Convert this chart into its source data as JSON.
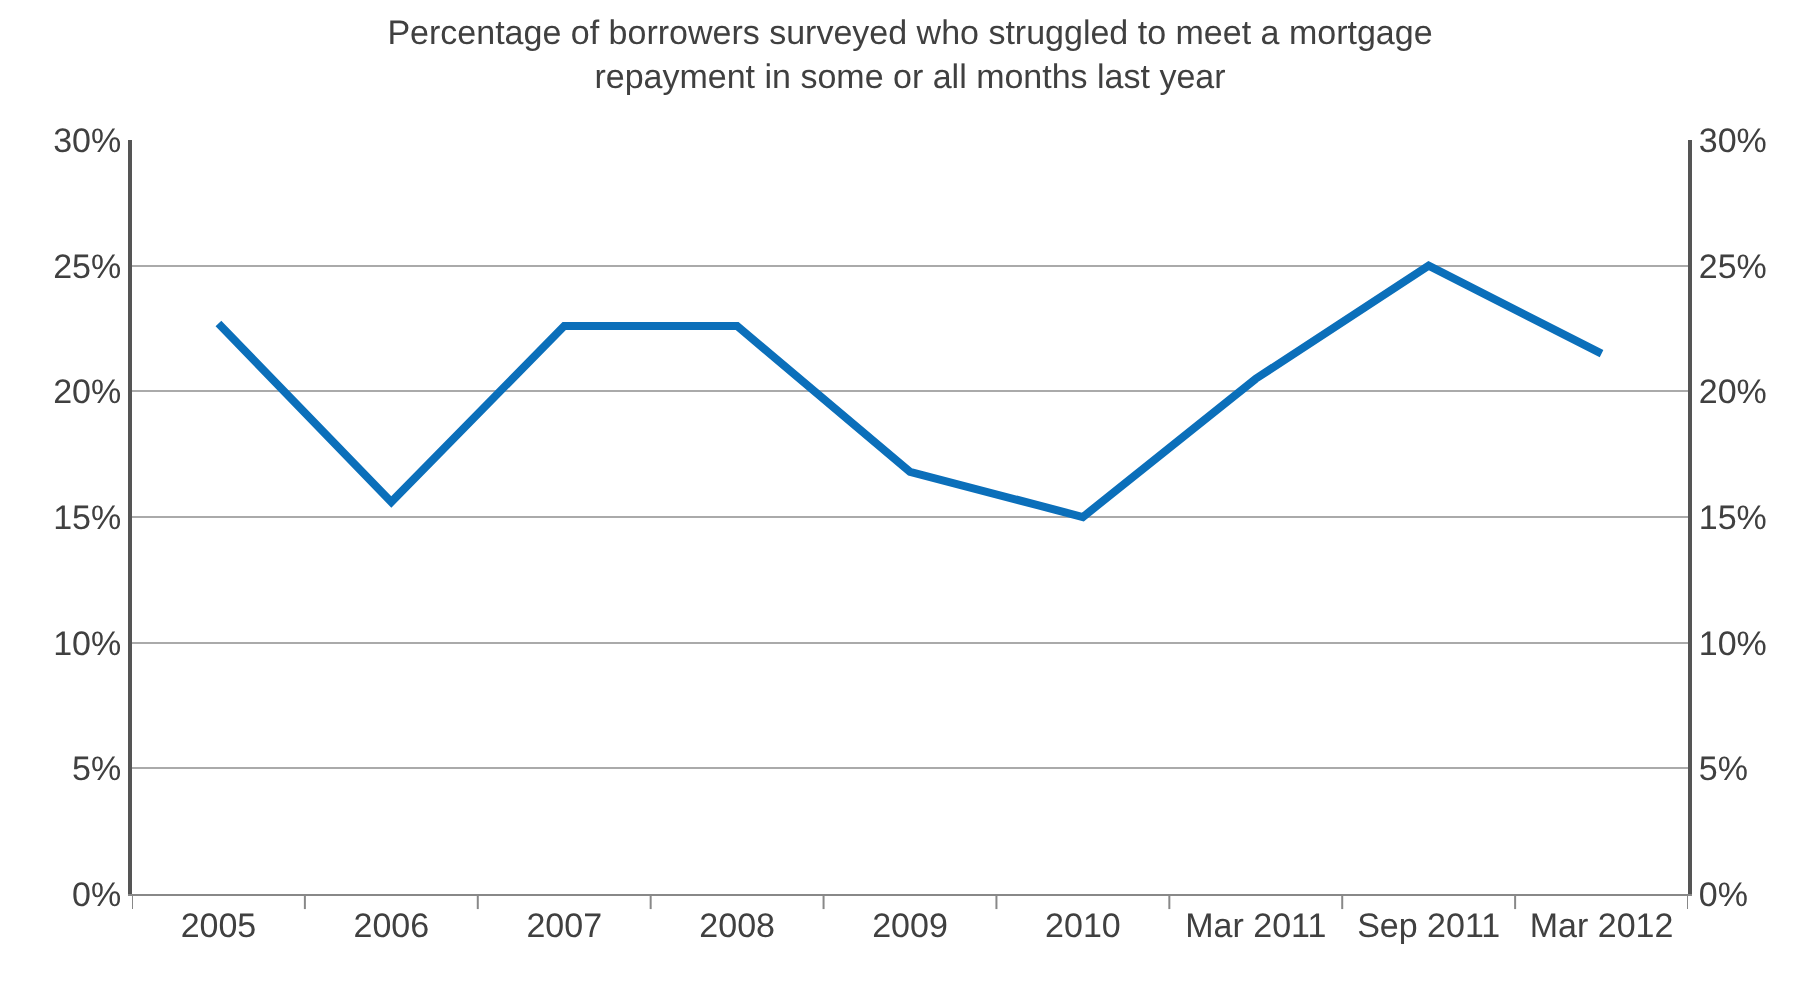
{
  "chart_data": {
    "type": "line",
    "title": "Percentage of borrowers surveyed who struggled to meet a mortgage\nrepayment in some or all months last year",
    "categories": [
      "2005",
      "2006",
      "2007",
      "2008",
      "2009",
      "2010",
      "Mar 2011",
      "Sep 2011",
      "Mar 2012"
    ],
    "series": [
      {
        "color": "#0b6fba",
        "values": [
          22.7,
          15.6,
          22.6,
          22.6,
          16.8,
          15.0,
          20.5,
          25.0,
          21.5
        ]
      }
    ],
    "ylim": [
      0,
      30
    ],
    "yticks": [
      {
        "value": 0,
        "label": "0%"
      },
      {
        "value": 5,
        "label": "5%"
      },
      {
        "value": 10,
        "label": "10%"
      },
      {
        "value": 15,
        "label": "15%"
      },
      {
        "value": 20,
        "label": "20%"
      },
      {
        "value": 25,
        "label": "25%"
      },
      {
        "value": 30,
        "label": "30%"
      }
    ],
    "y2lim": [
      0,
      30
    ],
    "y2ticks": [
      {
        "value": 0,
        "label": "0%"
      },
      {
        "value": 5,
        "label": "5%"
      },
      {
        "value": 10,
        "label": "10%"
      },
      {
        "value": 15,
        "label": "15%"
      },
      {
        "value": 20,
        "label": "20%"
      },
      {
        "value": 25,
        "label": "25%"
      },
      {
        "value": 30,
        "label": "30%"
      }
    ],
    "grid": "y",
    "marker": "none",
    "line_style": "solid"
  }
}
